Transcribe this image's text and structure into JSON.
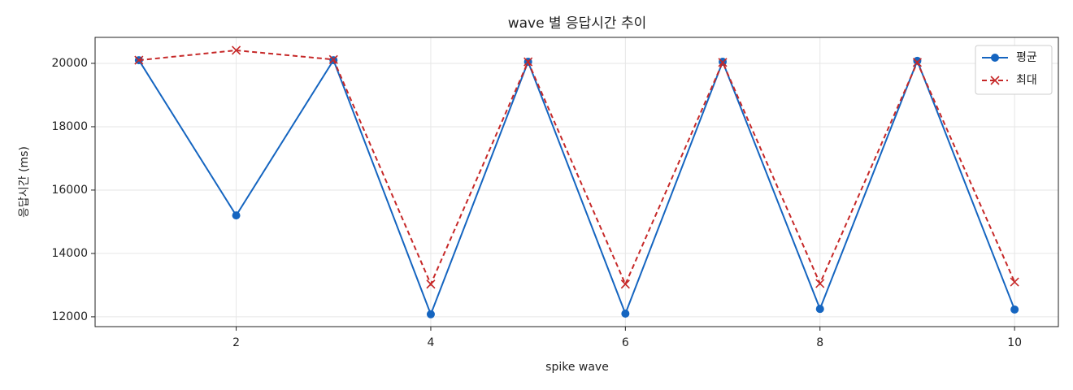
{
  "chart_data": {
    "type": "line",
    "title": "wave 별 응답시간 추이",
    "x_label": "spike wave",
    "y_label": "응답시간 (ms)",
    "x": [
      1,
      2,
      3,
      4,
      5,
      6,
      7,
      8,
      9,
      10
    ],
    "series": [
      {
        "name": "평균",
        "color": "#1565c0",
        "marker": "o",
        "linestyle": "solid",
        "values": [
          20100,
          15200,
          20100,
          12080,
          20050,
          12100,
          20050,
          12250,
          20080,
          12230
        ]
      },
      {
        "name": "최대",
        "color": "#c62828",
        "marker": "x",
        "linestyle": "dashed",
        "values": [
          20100,
          20410,
          20120,
          13030,
          20050,
          13030,
          20030,
          13050,
          20030,
          13100
        ]
      }
    ],
    "xlim": [
      0.55,
      10.45
    ],
    "ylim": [
      11690,
      20820
    ],
    "xticks": [
      2,
      4,
      6,
      8,
      10
    ],
    "yticks": [
      12000,
      14000,
      16000,
      18000,
      20000
    ],
    "grid": true,
    "legend": "upper right"
  }
}
